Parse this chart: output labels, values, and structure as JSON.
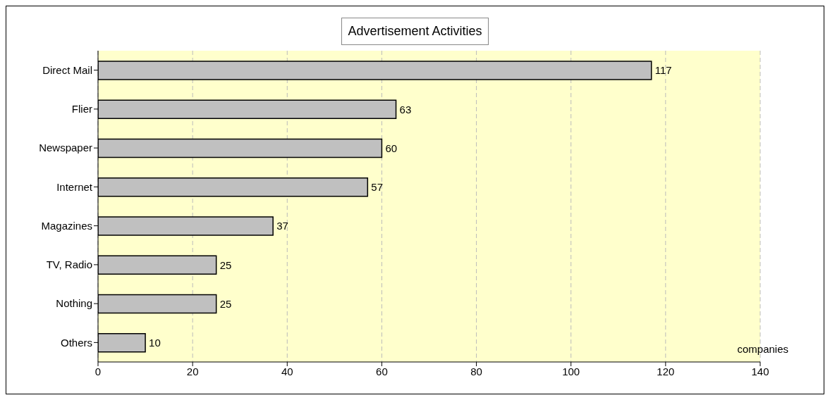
{
  "chart_data": {
    "type": "bar",
    "orientation": "horizontal",
    "title": "Advertisement Activities",
    "xlabel": "companies",
    "categories": [
      "Direct Mail",
      "Flier",
      "Newspaper",
      "Internet",
      "Magazines",
      "TV, Radio",
      "Nothing",
      "Others"
    ],
    "values": [
      117,
      63,
      60,
      57,
      37,
      25,
      25,
      10
    ],
    "color": "#c0c0c0",
    "xlim": [
      0,
      140
    ],
    "xticks": [
      0,
      20,
      40,
      60,
      80,
      100,
      120,
      140
    ],
    "grid": "x",
    "data_labels": true
  }
}
